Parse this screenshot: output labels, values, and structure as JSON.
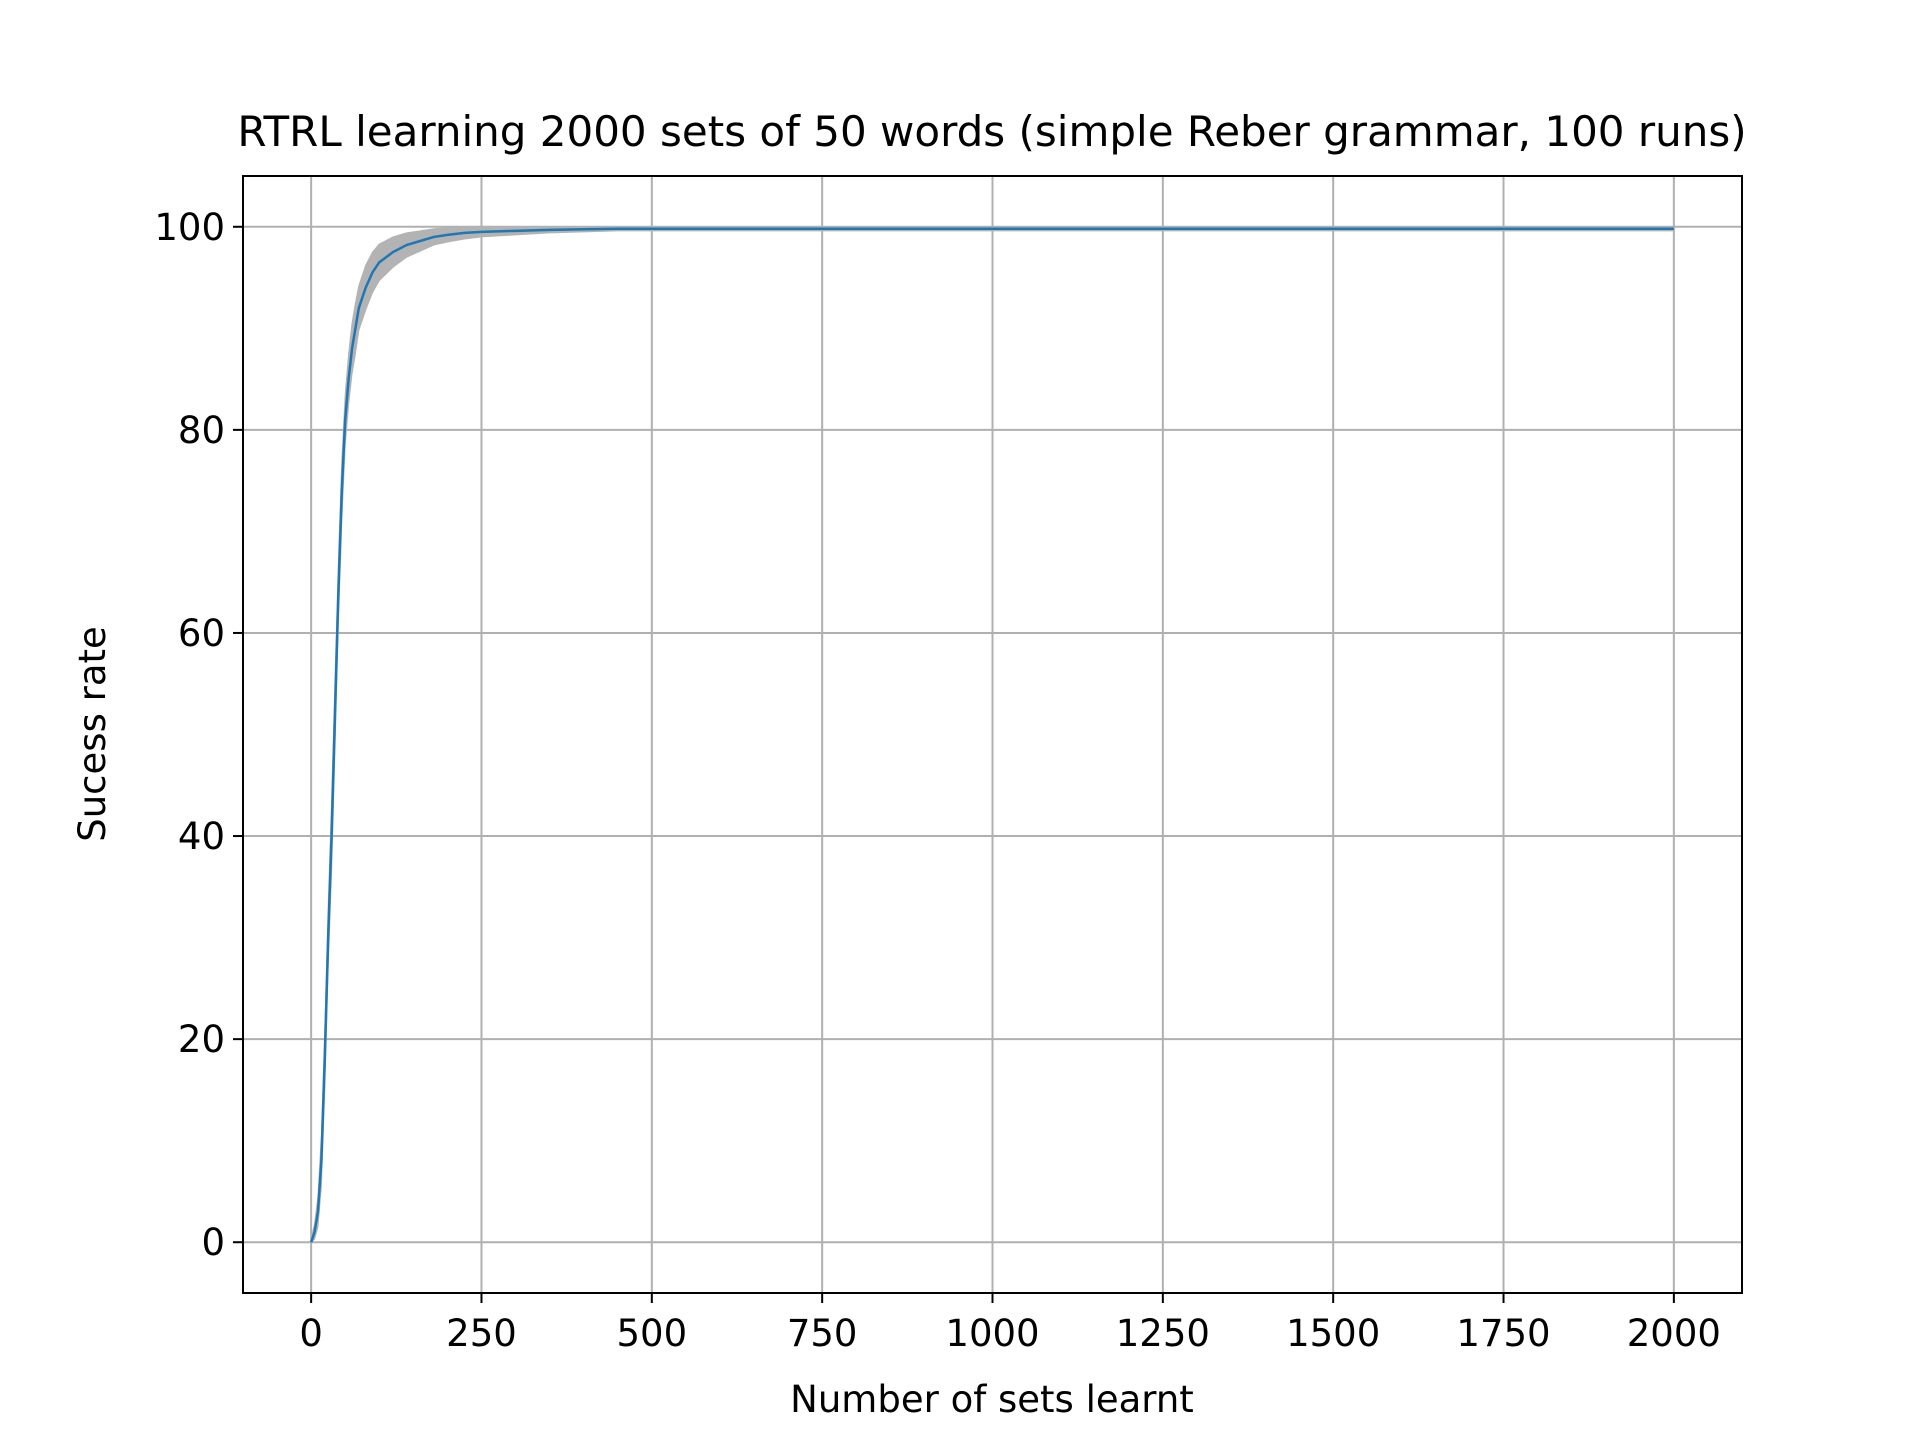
{
  "chart_data": {
    "type": "line",
    "title": "RTRL learning 2000 sets of 50 words (simple Reber grammar, 100 runs)",
    "xlabel": "Number of sets learnt",
    "ylabel": "Sucess rate",
    "xlim": [
      -100,
      2100
    ],
    "ylim": [
      -5,
      105
    ],
    "xticks": [
      0,
      250,
      500,
      750,
      1000,
      1250,
      1500,
      1750,
      2000
    ],
    "xtick_labels": [
      "0",
      "250",
      "500",
      "750",
      "1000",
      "1250",
      "1500",
      "1750",
      "2000"
    ],
    "yticks": [
      0,
      20,
      40,
      60,
      80,
      100
    ],
    "ytick_labels": [
      "0",
      "20",
      "40",
      "60",
      "80",
      "100"
    ],
    "grid": true,
    "colors": {
      "mean_line": "#1f77b4",
      "band": "#b3b3b3",
      "grid": "#b0b0b0"
    },
    "series": [
      {
        "role": "mean",
        "x": [
          0,
          5,
          10,
          15,
          20,
          25,
          30,
          35,
          40,
          45,
          50,
          55,
          60,
          65,
          70,
          80,
          90,
          100,
          120,
          140,
          160,
          180,
          200,
          225,
          250,
          300,
          350,
          400,
          450,
          500,
          600,
          700,
          800,
          900,
          1000,
          1250,
          1500,
          1750,
          2000
        ],
        "y": [
          0,
          1,
          3,
          8,
          18,
          30,
          40,
          52,
          64,
          74,
          81,
          85,
          88,
          90,
          92,
          94,
          95.5,
          96.5,
          97.5,
          98.2,
          98.6,
          99,
          99.2,
          99.4,
          99.5,
          99.6,
          99.7,
          99.75,
          99.8,
          99.8,
          99.8,
          99.8,
          99.8,
          99.8,
          99.8,
          99.8,
          99.8,
          99.8,
          99.8
        ]
      },
      {
        "role": "band-upper",
        "x": [
          0,
          5,
          10,
          15,
          20,
          25,
          30,
          35,
          40,
          45,
          50,
          55,
          60,
          65,
          70,
          80,
          90,
          100,
          120,
          140,
          160,
          180,
          200,
          225,
          250,
          300,
          350,
          400,
          450,
          500,
          600,
          700,
          800,
          900,
          1000,
          1250,
          1500,
          1750,
          2000
        ],
        "y": [
          0.3,
          1.8,
          4.5,
          10.5,
          21,
          33,
          43.5,
          55.5,
          67,
          77,
          83.5,
          87.5,
          90.5,
          92.5,
          94.2,
          96.2,
          97.5,
          98.3,
          99,
          99.4,
          99.6,
          99.8,
          99.9,
          100,
          100,
          100,
          100,
          100,
          100,
          100,
          100,
          100,
          100,
          100,
          100,
          100,
          100,
          100,
          100
        ]
      },
      {
        "role": "band-lower",
        "x": [
          0,
          5,
          10,
          15,
          20,
          25,
          30,
          35,
          40,
          45,
          50,
          55,
          60,
          65,
          70,
          80,
          90,
          100,
          120,
          140,
          160,
          180,
          200,
          225,
          250,
          300,
          350,
          400,
          450,
          500,
          600,
          700,
          800,
          900,
          1000,
          1250,
          1500,
          1750,
          2000
        ],
        "y": [
          0,
          0.3,
          1.5,
          5.5,
          15,
          27,
          36.5,
          48.5,
          61,
          71,
          78.5,
          82.5,
          85.5,
          87.5,
          89.8,
          91.8,
          93.5,
          94.7,
          96,
          97,
          97.6,
          98.2,
          98.5,
          98.8,
          99,
          99.2,
          99.4,
          99.5,
          99.6,
          99.6,
          99.6,
          99.6,
          99.6,
          99.6,
          99.6,
          99.6,
          99.6,
          99.6,
          99.6
        ]
      }
    ]
  }
}
